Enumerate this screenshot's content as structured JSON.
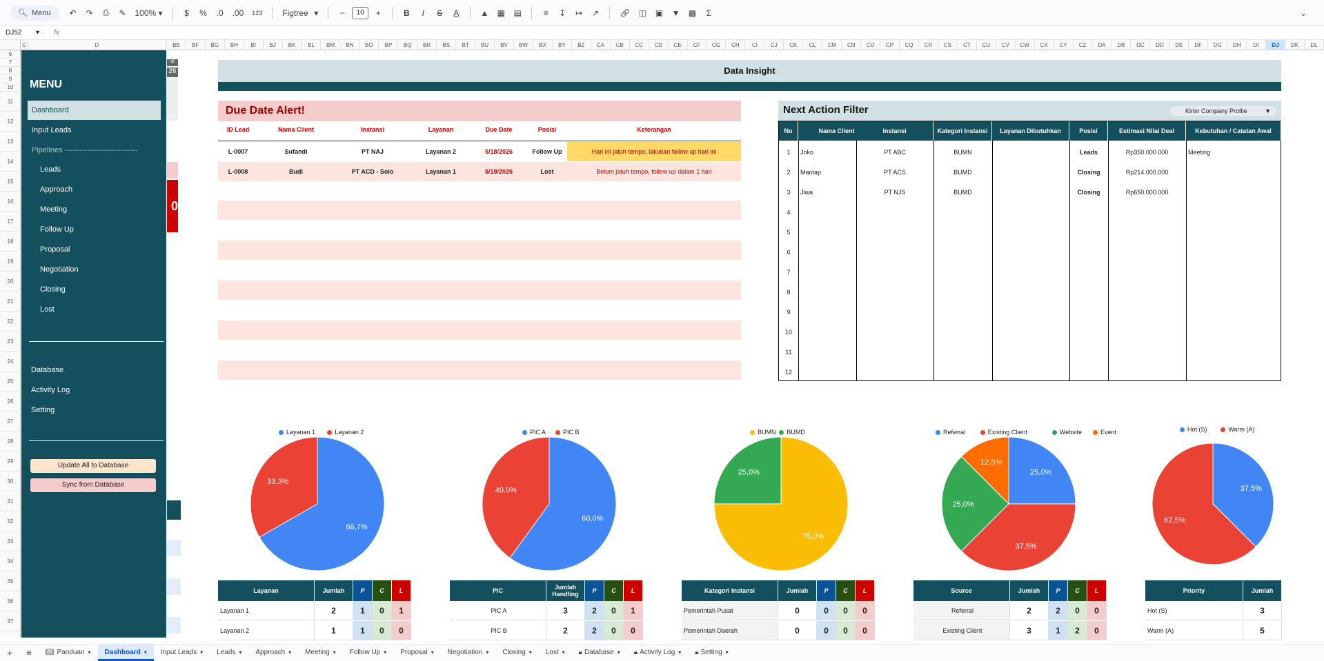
{
  "toolbar": {
    "menu_label": "Menu",
    "zoom": "100%",
    "currency": "$",
    "percent": "%",
    "dec_dec": ".0",
    "dec_inc": ".00",
    "num_fmt": "123",
    "font": "Figtree",
    "font_size": "10"
  },
  "formula": {
    "cell_ref": "DJ52",
    "fx": "fx"
  },
  "columns": [
    "C",
    "D",
    "BE",
    "BF",
    "BG",
    "BH",
    "BI",
    "BJ",
    "BK",
    "BL",
    "BM",
    "BN",
    "BO",
    "BP",
    "BQ",
    "BR",
    "BS",
    "BT",
    "BU",
    "BV",
    "BW",
    "BX",
    "BY",
    "BZ",
    "CA",
    "CB",
    "CC",
    "CD",
    "CE",
    "CF",
    "CG",
    "CH",
    "CI",
    "CJ",
    "CK",
    "CL",
    "CM",
    "CN",
    "CO",
    "CP",
    "CQ",
    "CR",
    "CS",
    "CT",
    "CU",
    "CV",
    "CW",
    "CX",
    "CY",
    "CZ",
    "DA",
    "DB",
    "DC",
    "DD",
    "DE",
    "DF",
    "DG",
    "DH",
    "DI",
    "DJ",
    "DK",
    "DL"
  ],
  "rows": [
    "6",
    "7",
    "8",
    "9",
    "10",
    "11",
    "12",
    "13",
    "14",
    "15",
    "16",
    "17",
    "18",
    "19",
    "20",
    "21",
    "22",
    "23",
    "24",
    "25",
    "26",
    "27",
    "28",
    "29",
    "30",
    "31",
    "32",
    "33",
    "34",
    "35",
    "36",
    "37"
  ],
  "sidebar": {
    "title": "MENU",
    "dashboard": "Dashboard",
    "input_leads": "Input Leads",
    "pipelines": "Pipelines -----------------------------",
    "pipeline_items": [
      "Leads",
      "Approach",
      "Meeting",
      "Follow Up",
      "Proposal",
      "Negotiation",
      "Closing",
      "Lost"
    ],
    "database": "Database",
    "activity_log": "Activity Log",
    "setting": "Setting",
    "btn_update": "Update All to Database",
    "btn_sync": "Sync from Database"
  },
  "strip": {
    "top_text": "ol",
    "num": "26",
    "zero": "0"
  },
  "insight": {
    "title": "Data Insight"
  },
  "due": {
    "title": "Due Date Alert!",
    "headers": [
      "ID Lead",
      "Nama Client",
      "Instansi",
      "Layanan",
      "Due Date",
      "Posisi",
      "Keterangan"
    ],
    "rows": [
      [
        "L-0007",
        "Sufandi",
        "PT NAJ",
        "Layanan 2",
        "5/18/2026",
        "Follow Up",
        "Hari ini jatuh tempo, lakukan follow up hari ini"
      ],
      [
        "L-0008",
        "Budi",
        "PT ACD - Solo",
        "Layanan 1",
        "5/19/2026",
        "Lost",
        "Belum jatuh tempo, follow up dalam 1 hari"
      ]
    ]
  },
  "next_action": {
    "title": "Next Action Filter",
    "filter": "Kirim Company Profile",
    "headers": [
      "No",
      "Nama Client",
      "Instansi",
      "Kategori Instansi",
      "Layanan Dibutuhkan",
      "Posisi",
      "Estimasi Nilai Deal",
      "Kebutuhan / Catatan Awal"
    ],
    "numbers": [
      "1",
      "2",
      "3",
      "4",
      "5",
      "6",
      "7",
      "8",
      "9",
      "10",
      "11",
      "12"
    ],
    "rows": [
      [
        "Joko",
        "PT ABC",
        "BUMN",
        "",
        "Leads",
        "Rp350.000.000",
        "Meeting"
      ],
      [
        "Mantap",
        "PT ACS",
        "BUMD",
        "",
        "Closing",
        "Rp214.000.000",
        ""
      ],
      [
        "Jiwa",
        "PT NJS",
        "BUMD",
        "",
        "Closing",
        "Rp650.000.000",
        ""
      ]
    ]
  },
  "chart_data": [
    {
      "type": "pie",
      "legend": "top",
      "labels": [
        "Layanan 1",
        "Layanan 2"
      ],
      "values": [
        66.7,
        33.3
      ],
      "value_labels": [
        "66,7%",
        "33,3%"
      ],
      "colors": [
        "#4285f4",
        "#ea4335"
      ]
    },
    {
      "type": "pie",
      "legend": "top",
      "labels": [
        "PIC A",
        "PIC B"
      ],
      "values": [
        60.0,
        40.0
      ],
      "value_labels": [
        "60,0%",
        "40,0%"
      ],
      "colors": [
        "#4285f4",
        "#ea4335"
      ]
    },
    {
      "type": "pie",
      "legend": "top",
      "labels": [
        "BUMN",
        "BUMD"
      ],
      "values": [
        75.0,
        25.0
      ],
      "value_labels": [
        "75,0%",
        "25,0%"
      ],
      "colors": [
        "#fbbc04",
        "#34a853"
      ]
    },
    {
      "type": "pie",
      "legend": "top",
      "labels": [
        "Referral",
        "Existing Client",
        "Website",
        "Event"
      ],
      "values": [
        25.0,
        37.5,
        25.0,
        12.5
      ],
      "value_labels": [
        "25,0%",
        "37,5%",
        "25,0%",
        "12,5%"
      ],
      "colors": [
        "#4285f4",
        "#ea4335",
        "#34a853",
        "#ff6d01"
      ]
    },
    {
      "type": "pie",
      "legend": "top",
      "labels": [
        "Hot (S)",
        "Warm (A)"
      ],
      "values": [
        37.5,
        62.5
      ],
      "value_labels": [
        "37,5%",
        "62,5%"
      ],
      "colors": [
        "#4285f4",
        "#ea4335"
      ]
    }
  ],
  "tables": {
    "layanan": {
      "headers": [
        "Layanan",
        "Jumlah",
        "P",
        "C",
        "L"
      ],
      "rows": [
        [
          "Layanan 1",
          "2",
          "1",
          "0",
          "1"
        ],
        [
          "Layanan 2",
          "1",
          "1",
          "0",
          "0"
        ]
      ]
    },
    "pic": {
      "headers": [
        "PIC",
        "Jumlah Handling",
        "P",
        "C",
        "L"
      ],
      "rows": [
        [
          "PIC A",
          "3",
          "2",
          "0",
          "1"
        ],
        [
          "PIC B",
          "2",
          "2",
          "0",
          "0"
        ]
      ]
    },
    "kategori": {
      "headers": [
        "Kategori Instansi",
        "Jumlah",
        "P",
        "C",
        "L"
      ],
      "rows": [
        [
          "Pemerintah Pusat",
          "0",
          "0",
          "0",
          "0"
        ],
        [
          "Pemerintah Daerah",
          "0",
          "0",
          "0",
          "0"
        ]
      ]
    },
    "source": {
      "headers": [
        "Source",
        "Jumlah",
        "P",
        "C",
        "L"
      ],
      "rows": [
        [
          "Referral",
          "2",
          "2",
          "0",
          "0"
        ],
        [
          "Existing Client",
          "3",
          "1",
          "2",
          "0"
        ]
      ]
    },
    "priority": {
      "headers": [
        "Priority",
        "Jumlah"
      ],
      "rows": [
        [
          "Hot (S)",
          "3"
        ],
        [
          "Warm (A)",
          "5"
        ]
      ]
    }
  },
  "tabs": [
    "Panduan",
    "Dashboard",
    "Input Leads",
    "Leads",
    "Approach",
    "Meeting",
    "Follow Up",
    "Proposal",
    "Negotiation",
    "Closing",
    "Lost",
    "Database",
    "Activity Log",
    "Setting"
  ],
  "colors": {
    "teal": "#134f5c",
    "light_teal": "#d0e0e3",
    "pink": "#f4cccc",
    "alert_red": "#990000",
    "p": "#cfe2f3",
    "c": "#d9ead3",
    "l": "#f4cccc"
  }
}
